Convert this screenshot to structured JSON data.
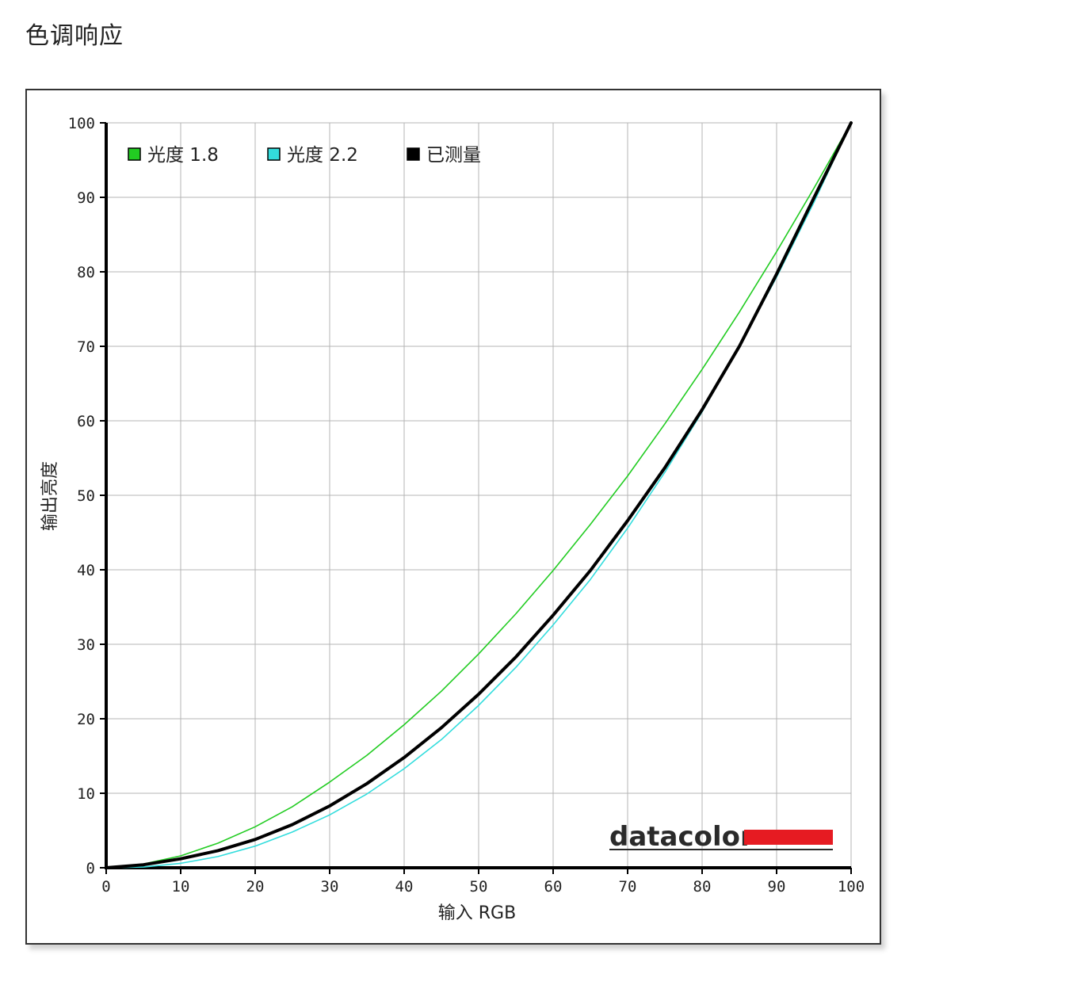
{
  "page": {
    "title": "色调响应"
  },
  "chart_data": {
    "type": "line",
    "xlabel": "输入 RGB",
    "ylabel": "输出亮度",
    "xlim": [
      0,
      100
    ],
    "ylim": [
      0,
      100
    ],
    "x_ticks": [
      0,
      10,
      20,
      30,
      40,
      50,
      60,
      70,
      80,
      90,
      100
    ],
    "y_ticks": [
      0,
      10,
      20,
      30,
      40,
      50,
      60,
      70,
      80,
      90,
      100
    ],
    "grid": true,
    "legend_position": "top-left",
    "logo": "datacolor",
    "series": [
      {
        "name": "光度 1.8",
        "color": "#22cc22",
        "x": [
          0,
          5,
          10,
          15,
          20,
          25,
          30,
          35,
          40,
          45,
          50,
          55,
          60,
          65,
          70,
          75,
          80,
          85,
          90,
          95,
          100
        ],
        "y": [
          0,
          0.5,
          1.6,
          3.3,
          5.5,
          8.2,
          11.5,
          15.1,
          19.2,
          23.7,
          28.7,
          34.1,
          39.9,
          46.1,
          52.6,
          59.6,
          66.9,
          74.6,
          82.7,
          91.2,
          100
        ]
      },
      {
        "name": "光度 2.2",
        "color": "#33dddd",
        "x": [
          0,
          5,
          10,
          15,
          20,
          25,
          30,
          35,
          40,
          45,
          50,
          55,
          60,
          65,
          70,
          75,
          80,
          85,
          90,
          95,
          100
        ],
        "y": [
          0,
          0.1,
          0.6,
          1.5,
          2.9,
          4.8,
          7.1,
          9.9,
          13.3,
          17.2,
          21.8,
          26.9,
          32.6,
          38.7,
          45.6,
          53.1,
          61.2,
          70.0,
          79.3,
          89.3,
          100
        ]
      },
      {
        "name": "已测量",
        "color": "#000000",
        "x": [
          0,
          5,
          10,
          15,
          20,
          25,
          30,
          35,
          40,
          45,
          50,
          55,
          60,
          65,
          70,
          75,
          80,
          85,
          90,
          95,
          100
        ],
        "y": [
          0,
          0.4,
          1.2,
          2.3,
          3.8,
          5.8,
          8.3,
          11.3,
          14.8,
          18.8,
          23.3,
          28.3,
          33.9,
          39.9,
          46.6,
          53.7,
          61.5,
          70.0,
          79.7,
          89.9,
          100
        ]
      }
    ]
  }
}
